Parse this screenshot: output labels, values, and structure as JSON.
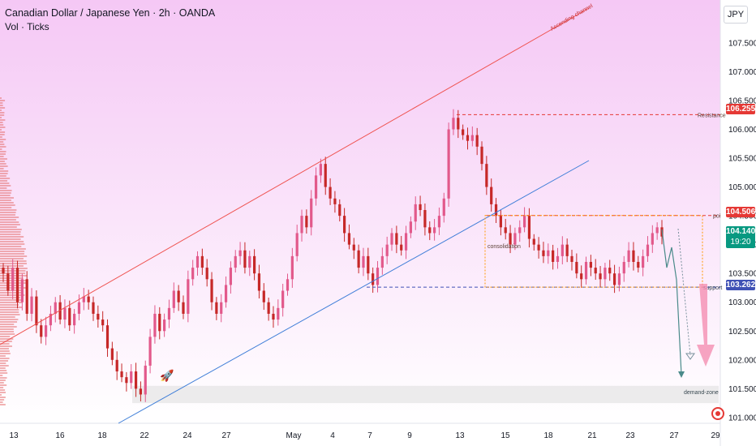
{
  "header": {
    "title": "Canadian Dollar / Japanese Yen · 2h · OANDA",
    "subtitle": "Vol · Ticks",
    "currency_button": "JPY"
  },
  "chart_data": {
    "type": "line",
    "title": "Canadian Dollar / Japanese Yen · 2h · OANDA",
    "xlabel": "",
    "ylabel": "",
    "ylim": [
      100.9,
      107.85
    ],
    "y_ticks": [
      101.0,
      101.5,
      102.0,
      102.5,
      103.0,
      103.5,
      104.0,
      104.5,
      105.0,
      105.5,
      106.0,
      106.5,
      107.0,
      107.5
    ],
    "y_tick_labels": [
      "101.000",
      "101.500",
      "102.000",
      "102.500",
      "103.000",
      "103.500",
      "104.000",
      "104.500",
      "105.000",
      "105.500",
      "106.000",
      "106.500",
      "107.000",
      "107.500"
    ],
    "x_ticks": [
      "13",
      "16",
      "18",
      "22",
      "24",
      "27",
      "May",
      "4",
      "7",
      "9",
      "13",
      "15",
      "18",
      "21",
      "23",
      "27",
      "29"
    ],
    "grid": false,
    "series": [
      {
        "values": [
          103.5,
          103.2,
          103.6,
          103.0,
          103.4,
          102.8,
          103.1,
          102.6,
          102.4,
          102.6,
          102.8,
          103.0,
          102.7,
          102.9,
          102.6,
          102.8,
          103.0,
          103.1,
          103.0,
          102.8,
          102.7,
          102.6,
          102.2,
          102.0,
          101.8,
          101.7,
          101.6,
          101.8,
          101.5,
          101.4,
          101.9,
          102.4,
          102.8,
          102.5,
          102.7,
          102.9,
          103.2,
          103.0,
          102.8,
          103.4,
          103.6,
          103.8,
          103.6,
          103.4,
          103.0,
          102.8,
          103.0,
          103.3,
          103.6,
          103.8,
          103.9,
          103.6,
          103.8,
          103.5,
          103.2,
          103.0,
          102.8,
          102.7,
          102.9,
          103.2,
          103.4,
          103.8,
          104.2,
          104.5,
          104.3,
          104.8,
          105.2,
          105.4,
          105.0,
          104.8,
          104.7,
          104.5,
          104.2,
          104.0,
          103.9,
          103.6,
          103.8,
          103.5,
          103.3,
          103.6,
          103.8,
          104.0,
          104.2,
          104.0,
          103.9,
          104.2,
          104.4,
          104.7,
          104.6,
          104.3,
          104.2,
          104.3,
          104.5,
          104.8,
          106.0,
          106.2,
          106.0,
          105.9,
          105.8,
          105.9,
          105.7,
          105.4,
          105.0,
          104.7,
          104.5,
          104.3,
          104.2,
          104.0,
          104.2,
          104.3,
          104.5,
          104.1,
          104.0,
          103.9,
          103.8,
          103.9,
          103.7,
          103.8,
          104.0,
          103.8,
          103.7,
          103.5,
          103.4,
          103.7,
          103.6,
          103.5,
          103.4,
          103.6,
          103.5,
          103.3,
          103.5,
          103.7,
          103.9,
          103.7,
          103.6,
          103.8,
          104.0,
          104.2,
          104.3,
          104.14
        ]
      }
    ],
    "annotations": {
      "ascending_channel": "Ascending channel",
      "resistance": "Resistance",
      "poi": "poi",
      "support": "support",
      "consolidation": "consolidation",
      "demand_zone": "demand-zone",
      "rocket_icon": "🚀"
    },
    "levels": {
      "resistance": 106.255,
      "poi": 104.506,
      "support": 103.262,
      "demand_top": 101.55,
      "demand_bottom": 101.25
    },
    "price_tags": {
      "resistance": "106.255",
      "poi": "104.506",
      "current": "104.140",
      "countdown": "19:20",
      "support": "103.262"
    },
    "colors": {
      "candle_up": "#e2598b",
      "candle_down": "#c62828",
      "channel_upper": "#ef5350",
      "channel_lower": "#3f7ed8",
      "resistance": "#e53935",
      "poi": "#e53935",
      "support": "#3f51b5",
      "current": "#089981",
      "consolidation": "#ff9800",
      "arrow_teal": "#4a8a8a",
      "arrow_red": "#f48fb1"
    }
  }
}
